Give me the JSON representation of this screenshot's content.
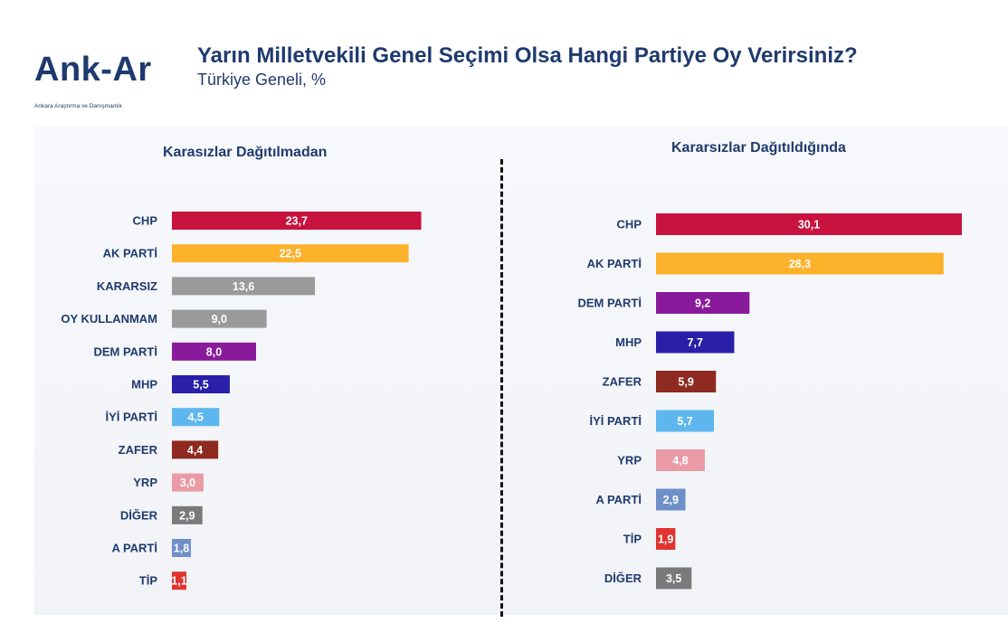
{
  "header": {
    "logo_text": "nk-Ar",
    "logo_initial": "A",
    "logo_subtitle": "Ankara Araştırma ve Danışmanlık",
    "title": "Yarın Milletvekili Genel Seçimi Olsa Hangi Partiye Oy Verirsiniz?",
    "subtitle": "Türkiye Geneli, %"
  },
  "chart_data": [
    {
      "type": "bar",
      "orientation": "horizontal",
      "title": "Karasızlar Dağıtılmadan",
      "categories": [
        "CHP",
        "AK PARTİ",
        "KARARSIZ",
        "OY KULLANMAM",
        "DEM PARTİ",
        "MHP",
        "İYİ PARTİ",
        "ZAFER",
        "YRP",
        "DİĞER",
        "A PARTİ",
        "TİP"
      ],
      "values": [
        23.7,
        22.5,
        13.6,
        9.0,
        8.0,
        5.5,
        4.5,
        4.4,
        3.0,
        2.9,
        1.8,
        1.1
      ],
      "labels": [
        "23,7",
        "22,5",
        "13,6",
        "9,0",
        "8,0",
        "5,5",
        "4,5",
        "4,4",
        "3,0",
        "2,9",
        "1,8",
        "1,1"
      ],
      "colors": [
        "#c8133f",
        "#fbb22a",
        "#9a9a9a",
        "#9a9a9a",
        "#8a1a9c",
        "#2a1fa8",
        "#5db7ee",
        "#8e2a1f",
        "#e99aa4",
        "#7a7a7a",
        "#6f8fc9",
        "#e03431"
      ],
      "xlim": [
        0,
        24
      ]
    },
    {
      "type": "bar",
      "orientation": "horizontal",
      "title": "Kararsızlar Dağıtıldığında",
      "categories": [
        "CHP",
        "AK PARTİ",
        "DEM PARTİ",
        "MHP",
        "ZAFER",
        "İYİ PARTİ",
        "YRP",
        "A PARTİ",
        "TİP",
        "DİĞER"
      ],
      "values": [
        30.1,
        28.3,
        9.2,
        7.7,
        5.9,
        5.7,
        4.8,
        2.9,
        1.9,
        3.5
      ],
      "labels": [
        "30,1",
        "28,3",
        "9,2",
        "7,7",
        "5,9",
        "5,7",
        "4,8",
        "2,9",
        "1,9",
        "3,5"
      ],
      "colors": [
        "#c8133f",
        "#fbb22a",
        "#8a1a9c",
        "#2a1fa8",
        "#8e2a1f",
        "#5db7ee",
        "#e99aa4",
        "#6f8fc9",
        "#e03431",
        "#7a7a7a"
      ],
      "xlim": [
        0,
        30.1
      ]
    }
  ]
}
